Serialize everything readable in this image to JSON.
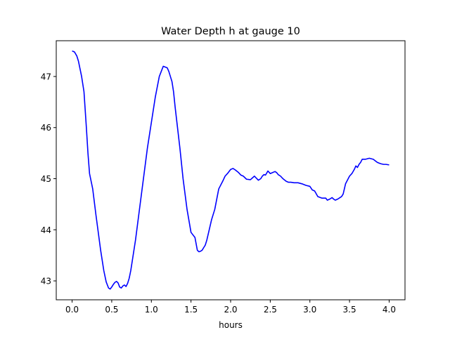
{
  "chart_data": {
    "type": "line",
    "title": "Water Depth h at gauge 10",
    "xlabel": "hours",
    "ylabel": "",
    "xlim": [
      -0.2,
      4.2
    ],
    "ylim": [
      42.63,
      47.7
    ],
    "xticks": [
      0.0,
      0.5,
      1.0,
      1.5,
      2.0,
      2.5,
      3.0,
      3.5,
      4.0
    ],
    "xtick_labels": [
      "0.0",
      "0.5",
      "1.0",
      "1.5",
      "2.0",
      "2.5",
      "3.0",
      "3.5",
      "4.0"
    ],
    "yticks": [
      43,
      44,
      45,
      46,
      47
    ],
    "ytick_labels": [
      "43",
      "44",
      "45",
      "46",
      "47"
    ],
    "grid": false,
    "legend": "none",
    "series": [
      {
        "color": "#0000ff",
        "x": [
          0.0,
          0.03,
          0.06,
          0.08,
          0.1,
          0.12,
          0.15,
          0.18,
          0.2,
          0.22,
          0.24,
          0.26,
          0.28,
          0.3,
          0.33,
          0.36,
          0.4,
          0.43,
          0.46,
          0.48,
          0.5,
          0.52,
          0.54,
          0.56,
          0.58,
          0.6,
          0.62,
          0.64,
          0.66,
          0.68,
          0.7,
          0.72,
          0.74,
          0.76,
          0.8,
          0.85,
          0.9,
          0.95,
          1.0,
          1.05,
          1.1,
          1.15,
          1.2,
          1.22,
          1.24,
          1.26,
          1.28,
          1.3,
          1.33,
          1.36,
          1.4,
          1.45,
          1.5,
          1.55,
          1.58,
          1.6,
          1.62,
          1.64,
          1.66,
          1.68,
          1.7,
          1.73,
          1.76,
          1.8,
          1.85,
          1.9,
          1.93,
          1.96,
          2.0,
          2.03,
          2.06,
          2.1,
          2.13,
          2.16,
          2.2,
          2.25,
          2.3,
          2.35,
          2.38,
          2.4,
          2.42,
          2.44,
          2.47,
          2.5,
          2.53,
          2.56,
          2.58,
          2.6,
          2.63,
          2.66,
          2.7,
          2.73,
          2.76,
          2.8,
          2.85,
          2.9,
          2.95,
          3.0,
          3.03,
          3.06,
          3.1,
          3.15,
          3.2,
          3.22,
          3.25,
          3.28,
          3.3,
          3.32,
          3.35,
          3.37,
          3.4,
          3.42,
          3.45,
          3.5,
          3.53,
          3.56,
          3.58,
          3.6,
          3.62,
          3.64,
          3.66,
          3.7,
          3.75,
          3.8,
          3.85,
          3.88,
          3.9,
          3.93,
          3.96,
          4.0
        ],
        "y": [
          47.5,
          47.48,
          47.4,
          47.3,
          47.15,
          47.0,
          46.7,
          46.0,
          45.5,
          45.1,
          44.95,
          44.8,
          44.55,
          44.3,
          43.95,
          43.6,
          43.2,
          42.98,
          42.86,
          42.84,
          42.88,
          42.93,
          42.97,
          42.99,
          42.96,
          42.88,
          42.86,
          42.9,
          42.92,
          42.89,
          42.95,
          43.05,
          43.2,
          43.4,
          43.8,
          44.4,
          45.0,
          45.6,
          46.1,
          46.6,
          47.0,
          47.2,
          47.17,
          47.1,
          47.0,
          46.9,
          46.7,
          46.4,
          46.0,
          45.6,
          45.0,
          44.4,
          43.95,
          43.85,
          43.6,
          43.57,
          43.58,
          43.6,
          43.65,
          43.7,
          43.8,
          44.0,
          44.2,
          44.4,
          44.8,
          44.95,
          45.05,
          45.1,
          45.18,
          45.2,
          45.17,
          45.12,
          45.07,
          45.05,
          44.99,
          44.98,
          45.05,
          44.97,
          45.0,
          45.05,
          45.08,
          45.07,
          45.15,
          45.1,
          45.12,
          45.14,
          45.12,
          45.08,
          45.05,
          45.0,
          44.95,
          44.93,
          44.93,
          44.92,
          44.92,
          44.9,
          44.87,
          44.85,
          44.78,
          44.76,
          44.65,
          44.62,
          44.62,
          44.58,
          44.6,
          44.63,
          44.6,
          44.58,
          44.6,
          44.62,
          44.65,
          44.7,
          44.9,
          45.05,
          45.1,
          45.18,
          45.25,
          45.22,
          45.28,
          45.32,
          45.38,
          45.38,
          45.4,
          45.38,
          45.32,
          45.3,
          45.29,
          45.28,
          45.28,
          45.27
        ]
      }
    ]
  }
}
